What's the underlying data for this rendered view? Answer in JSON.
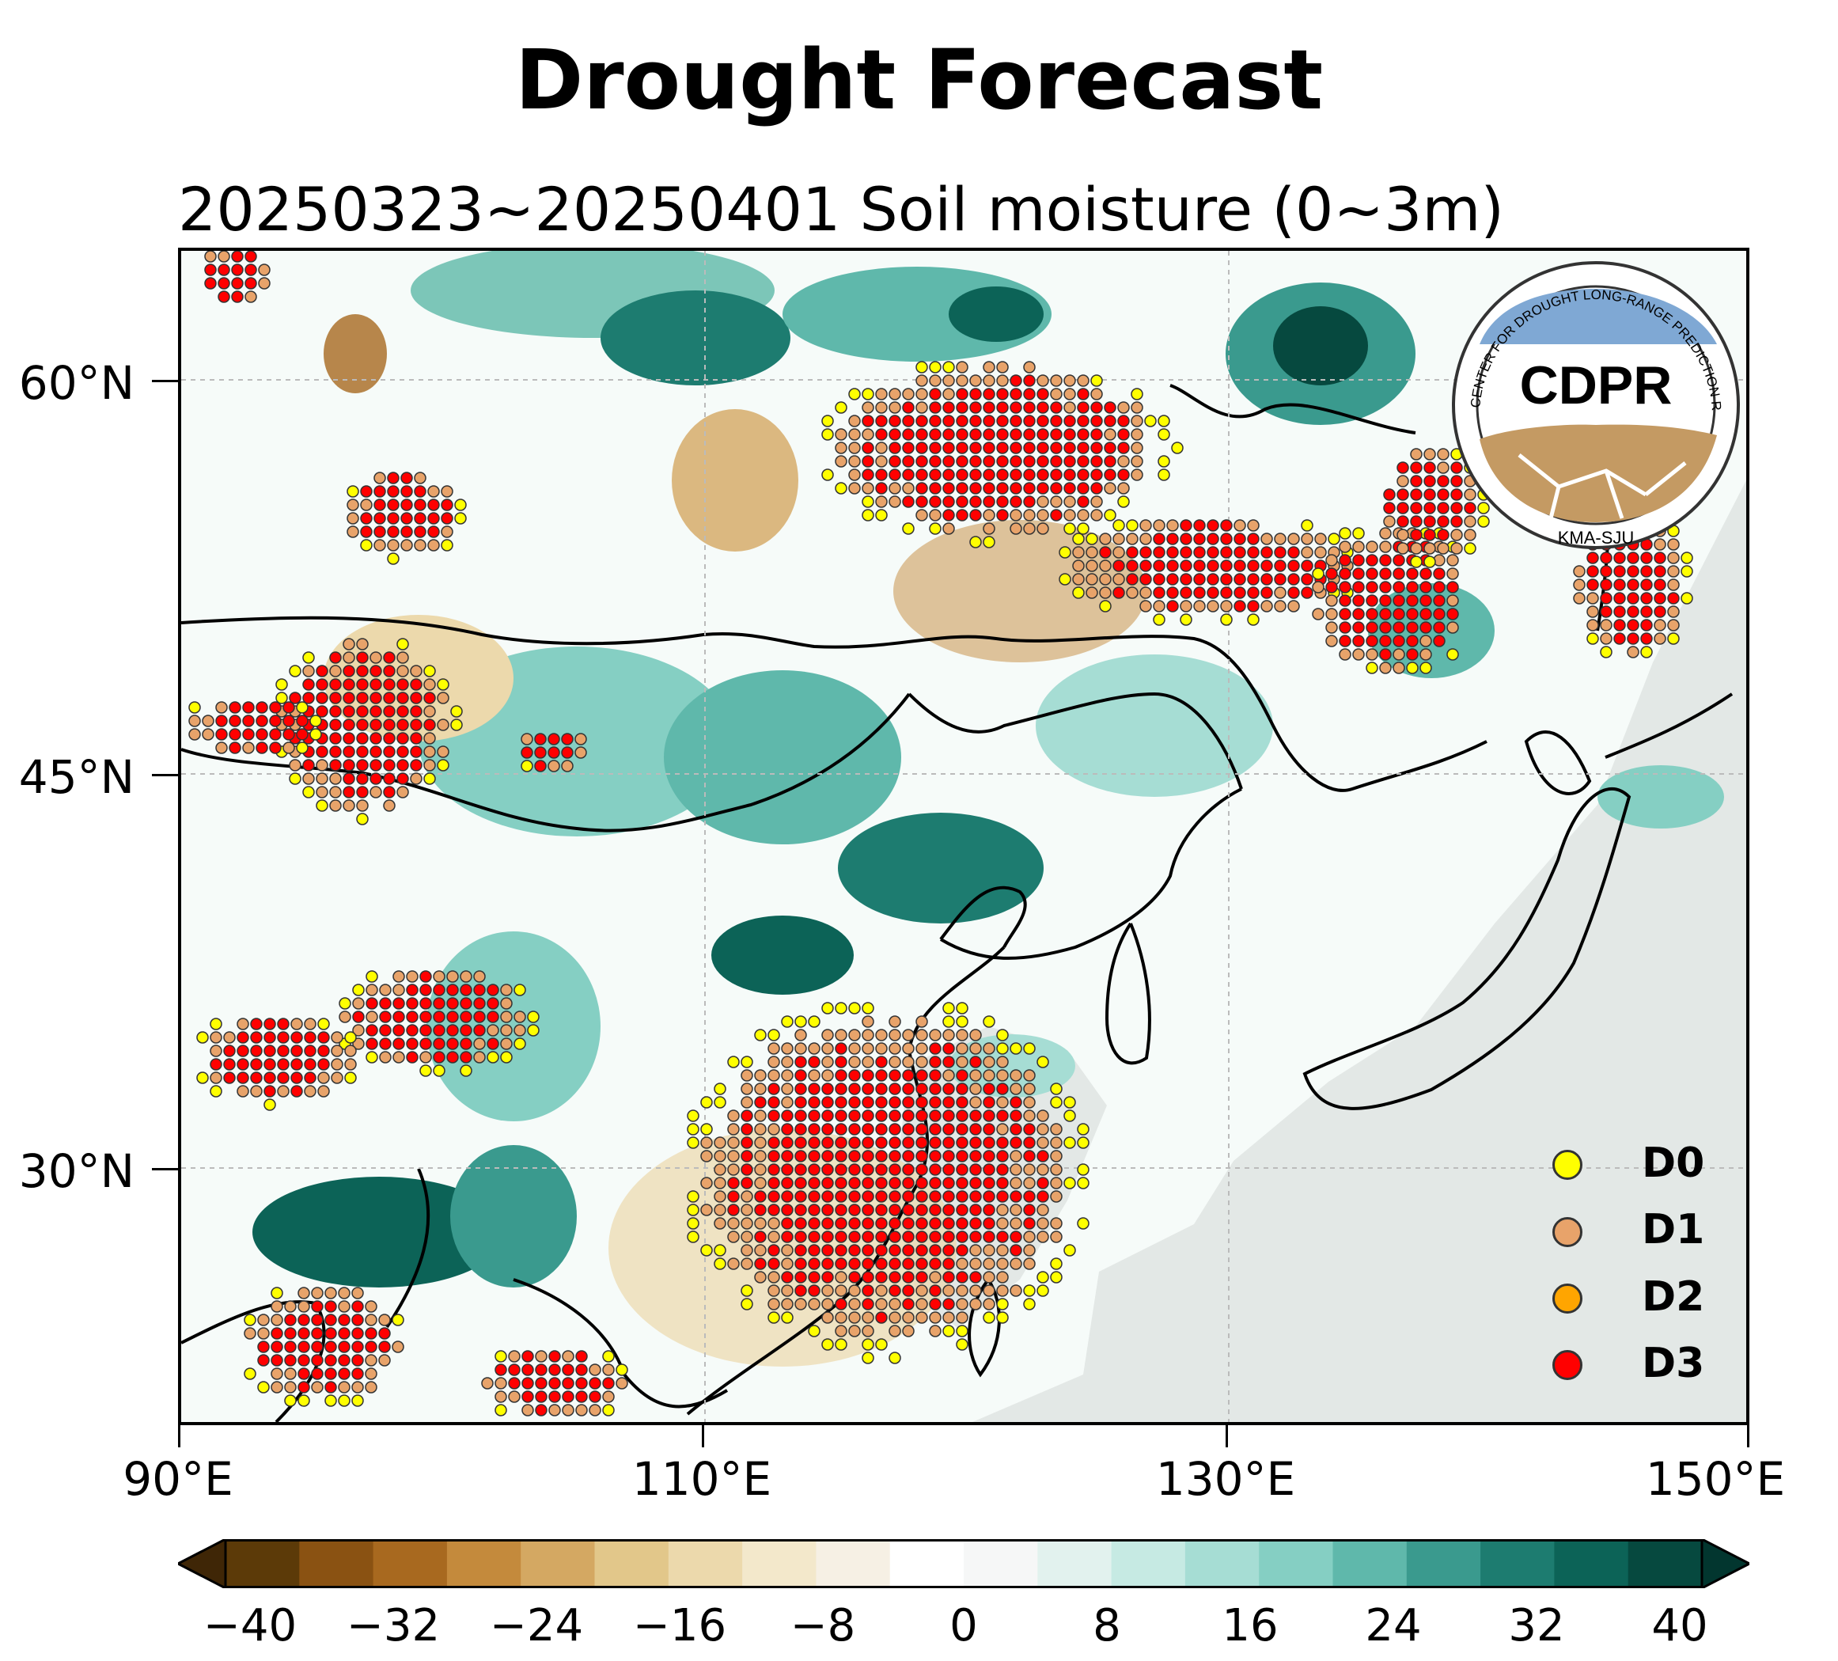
{
  "title": "Drought Forecast",
  "subtitle": "20250323~20250401 Soil moisture (0~3m)",
  "map": {
    "lat_labels": [
      "60°N",
      "45°N",
      "30°N"
    ],
    "lon_labels": [
      "90°E",
      "110°E",
      "130°E",
      "150°E"
    ],
    "extent": {
      "lon": [
        90,
        150
      ],
      "lat": [
        25,
        65
      ]
    },
    "land_color": "#ffffff",
    "ocean_color": "#d9d9d9"
  },
  "logo": {
    "text": "CDPR",
    "ring_text": "CENTER FOR DROUGHT LONG-RANGE PREDICTION RESEARCH",
    "bottom_text": "KMA-SJU"
  },
  "legend": {
    "items": [
      {
        "label": "D0",
        "color": "#ffff00"
      },
      {
        "label": "D1",
        "color": "#e8a36a"
      },
      {
        "label": "D2",
        "color": "#ffa500"
      },
      {
        "label": "D3",
        "color": "#ff0000"
      }
    ]
  },
  "colorbar": {
    "ticks": [
      "−40",
      "−32",
      "−24",
      "−16",
      "−8",
      "0",
      "8",
      "16",
      "24",
      "32",
      "40"
    ],
    "colors": [
      "#5c3a08",
      "#8a5212",
      "#a8691f",
      "#c48a3c",
      "#d4a862",
      "#e2c78a",
      "#ecd9ac",
      "#f3e8cb",
      "#f6f0e4",
      "#ffffff",
      "#f6f7f7",
      "#e2f2ee",
      "#c6eae3",
      "#a6ddd4",
      "#85cfc3",
      "#5fb8ab",
      "#3a9a8e",
      "#1d7c70",
      "#0c6357",
      "#06493f"
    ],
    "extend_low": "#3f2606",
    "extend_high": "#02362f"
  }
}
